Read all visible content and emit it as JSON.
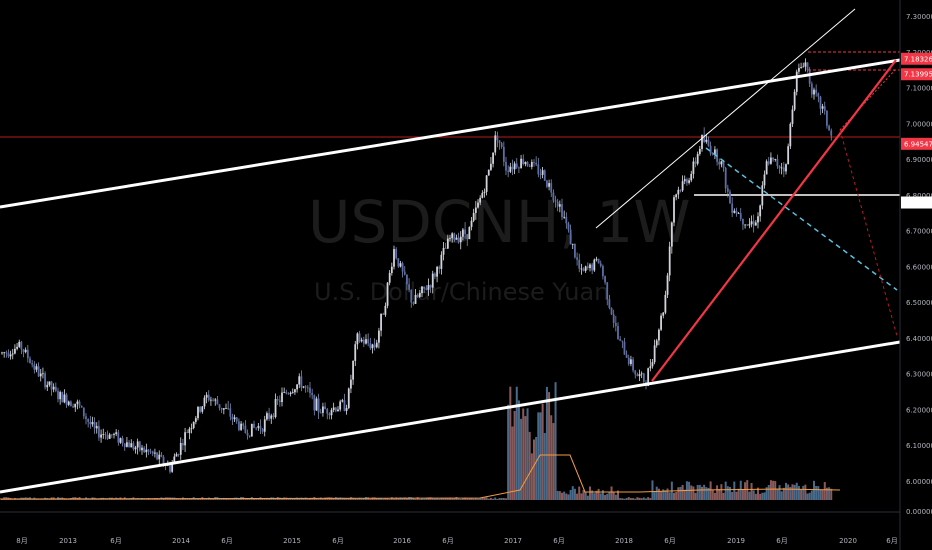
{
  "watermark": {
    "symbol_text": "USDCNH, 1W",
    "name_text": "U.S. Dollar/Chinese Yuan"
  },
  "chart_data": {
    "type": "candlestick",
    "symbol": "USDCNH",
    "interval": "1W",
    "name": "U.S. Dollar/Chinese Yuan",
    "ylim": [
      5.9,
      7.3
    ],
    "y_ticks": [
      "7.30000",
      "7.20000",
      "7.10000",
      "7.00000",
      "6.90000",
      "6.80000",
      "6.70000",
      "6.60000",
      "6.50000",
      "6.40000",
      "6.30000",
      "6.20000",
      "6.10000",
      "6.00000"
    ],
    "volume_zero_label": "0.00000",
    "x_ticks": [
      "8月",
      "2013",
      "6月",
      "2014",
      "6月",
      "2015",
      "6月",
      "2016",
      "6月",
      "2017",
      "6月",
      "2018",
      "6月",
      "2019",
      "6月",
      "2020",
      "6月"
    ],
    "price_labels": [
      {
        "value": 7.18326,
        "text": "7.18326",
        "color": "#f23645"
      },
      {
        "value": 7.13995,
        "text": "7.13995",
        "color": "#f23645"
      },
      {
        "value": 6.94547,
        "text": "6.94547",
        "color": "#f23645"
      },
      {
        "value": 6.78135,
        "text": "6.78135",
        "color": "#ffffff"
      }
    ],
    "series_close_path": [
      [
        "2012-07",
        6.36
      ],
      [
        "2012-09",
        6.38
      ],
      [
        "2012-11",
        6.3
      ],
      [
        "2013-01",
        6.24
      ],
      [
        "2013-03",
        6.22
      ],
      [
        "2013-05",
        6.14
      ],
      [
        "2013-07",
        6.13
      ],
      [
        "2013-09",
        6.1
      ],
      [
        "2013-11",
        6.08
      ],
      [
        "2014-01",
        6.04
      ],
      [
        "2014-03",
        6.15
      ],
      [
        "2014-05",
        6.24
      ],
      [
        "2014-07",
        6.2
      ],
      [
        "2014-09",
        6.14
      ],
      [
        "2014-11",
        6.16
      ],
      [
        "2015-01",
        6.24
      ],
      [
        "2015-03",
        6.28
      ],
      [
        "2015-05",
        6.2
      ],
      [
        "2015-07",
        6.21
      ],
      [
        "2015-08",
        6.22
      ],
      [
        "2015-09",
        6.4
      ],
      [
        "2015-11",
        6.38
      ],
      [
        "2015-12",
        6.5
      ],
      [
        "2016-01",
        6.65
      ],
      [
        "2016-03",
        6.5
      ],
      [
        "2016-05",
        6.56
      ],
      [
        "2016-07",
        6.68
      ],
      [
        "2016-09",
        6.7
      ],
      [
        "2016-11",
        6.85
      ],
      [
        "2016-12",
        6.98
      ],
      [
        "2017-01",
        6.88
      ],
      [
        "2017-03",
        6.9
      ],
      [
        "2017-05",
        6.86
      ],
      [
        "2017-07",
        6.76
      ],
      [
        "2017-09",
        6.58
      ],
      [
        "2017-11",
        6.62
      ],
      [
        "2018-01",
        6.4
      ],
      [
        "2018-03",
        6.3
      ],
      [
        "2018-04",
        6.28
      ],
      [
        "2018-06",
        6.5
      ],
      [
        "2018-07",
        6.8
      ],
      [
        "2018-09",
        6.87
      ],
      [
        "2018-10",
        6.96
      ],
      [
        "2018-12",
        6.9
      ],
      [
        "2019-01",
        6.78
      ],
      [
        "2019-03",
        6.72
      ],
      [
        "2019-04",
        6.74
      ],
      [
        "2019-05",
        6.9
      ],
      [
        "2019-07",
        6.88
      ],
      [
        "2019-08",
        7.13
      ],
      [
        "2019-09",
        7.18
      ],
      [
        "2019-10",
        7.08
      ],
      [
        "2019-11",
        7.04
      ],
      [
        "2019-12",
        6.95
      ]
    ],
    "volume_path": [
      [
        "2017-01",
        0.3
      ],
      [
        "2017-02",
        0.5
      ],
      [
        "2017-03",
        4.2
      ],
      [
        "2017-04",
        3.6
      ],
      [
        "2017-05",
        2.1
      ],
      [
        "2018-06",
        0.4
      ],
      [
        "2019-06",
        0.45
      ]
    ]
  }
}
